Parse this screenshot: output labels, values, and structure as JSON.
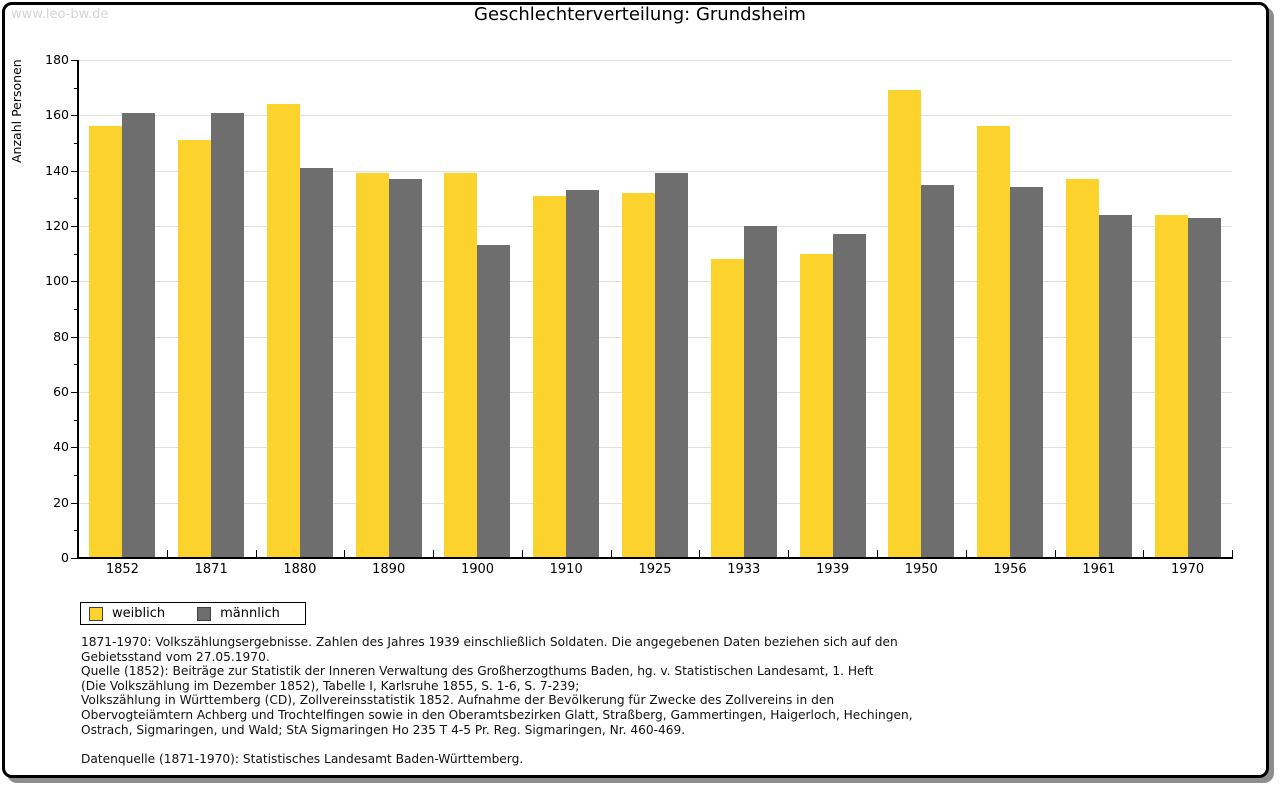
{
  "watermark": "www.leo-bw.de",
  "title": "Geschlechterverteilung: Grundsheim",
  "chart_data": {
    "type": "bar",
    "title": "Geschlechterverteilung: Grundsheim",
    "xlabel": "",
    "ylabel": "Anzahl Personen",
    "ylim": [
      0,
      180
    ],
    "y_major_step": 20,
    "y_minor_step": 10,
    "grid": true,
    "legend_position": "bottom-left",
    "categories": [
      "1852",
      "1871",
      "1880",
      "1890",
      "1900",
      "1910",
      "1925",
      "1933",
      "1939",
      "1950",
      "1956",
      "1961",
      "1970"
    ],
    "series": [
      {
        "name": "weiblich",
        "color": "#FCD32D",
        "values": [
          156,
          151,
          164,
          139,
          139,
          131,
          132,
          108,
          110,
          169,
          156,
          137,
          124
        ]
      },
      {
        "name": "männlich",
        "color": "#6E6E6E",
        "values": [
          161,
          161,
          141,
          137,
          113,
          133,
          139,
          120,
          117,
          135,
          134,
          124,
          123
        ]
      }
    ]
  },
  "colors": {
    "grid": "#E0E0E0",
    "axis": "#000000",
    "watermark": "#D5D5D5",
    "frame_shadow": "#8E8E8E"
  },
  "footnotes": {
    "lines": [
      "1871-1970: Volkszählungsergebnisse. Zahlen des Jahres 1939 einschließlich Soldaten. Die angegebenen Daten beziehen sich auf den",
      "Gebietsstand vom 27.05.1970.",
      "Quelle (1852): Beiträge zur Statistik der Inneren Verwaltung des Großherzogthums Baden, hg. v. Statistischen Landesamt, 1. Heft",
      "(Die Volkszählung im Dezember 1852), Tabelle I, Karlsruhe 1855, S. 1-6, S. 7-239;",
      "Volkszählung in Württemberg (CD), Zollvereinsstatistik 1852. Aufnahme der Bevölkerung für Zwecke des Zollvereins in den",
      "Obervogteiämtern Achberg und Trochtelfingen sowie in den Oberamtsbezirken Glatt, Straßberg, Gammertingen, Haigerloch, Hechingen,",
      "Ostrach, Sigmaringen, und Wald; StA Sigmaringen Ho 235 T 4-5 Pr. Reg. Sigmaringen, Nr. 460-469.",
      "",
      "Datenquelle (1871-1970): Statistisches Landesamt Baden-Württemberg."
    ]
  }
}
